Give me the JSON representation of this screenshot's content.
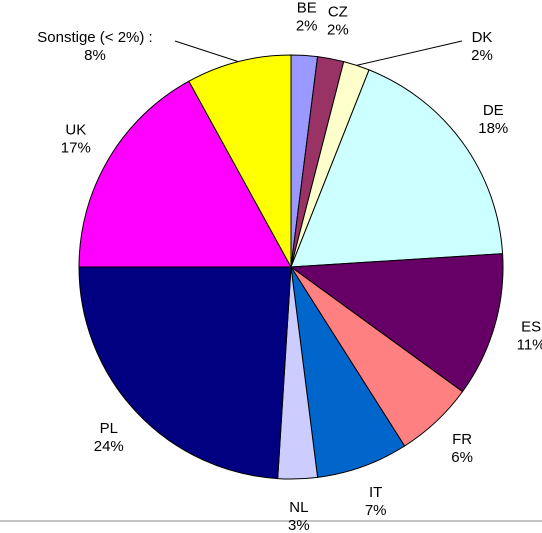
{
  "chart_data": {
    "type": "pie",
    "categories": [
      "BE",
      "CZ",
      "DK",
      "DE",
      "ES",
      "FR",
      "IT",
      "NL",
      "PL",
      "UK",
      "Sonstige (< 2%) :"
    ],
    "values": [
      2,
      2,
      2,
      18,
      11,
      6,
      7,
      3,
      24,
      17,
      8
    ],
    "value_labels": [
      "2%",
      "2%",
      "2%",
      "18%",
      "11%",
      "6%",
      "7%",
      "3%",
      "24%",
      "17%",
      "8%"
    ],
    "colors": [
      "#9999ff",
      "#993366",
      "#ffffcc",
      "#ccffff",
      "#660066",
      "#ff8080",
      "#0066cc",
      "#ccccff",
      "#000080",
      "#ff00ff",
      "#ffff00"
    ]
  }
}
